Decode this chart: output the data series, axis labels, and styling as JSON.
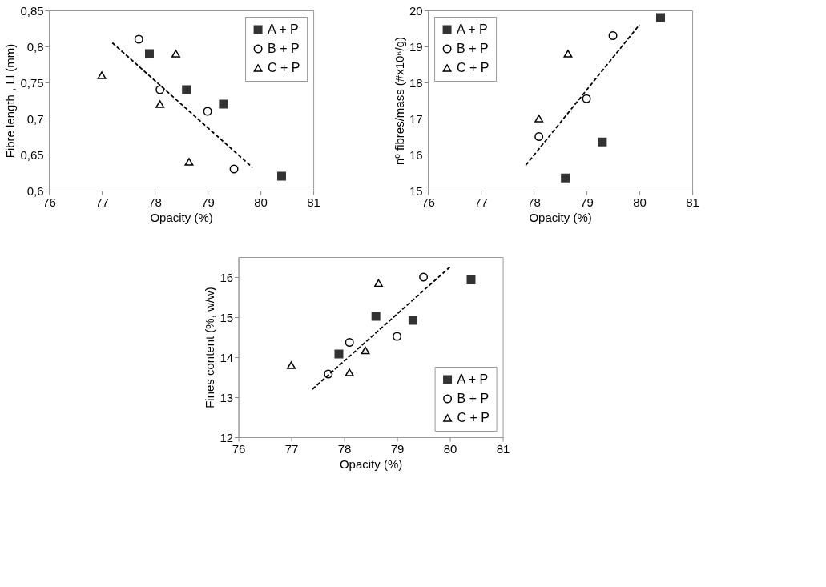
{
  "chart_data": [
    {
      "type": "scatter",
      "xlabel": "Opacity (%)",
      "ylabel": "Fibre length , Ll (mm)",
      "legend": "top right",
      "grid": false,
      "xlim": [
        76,
        81
      ],
      "xticks": [
        76,
        77,
        78,
        79,
        80,
        81
      ],
      "ylim": [
        0.6,
        0.85
      ],
      "yticks": [
        {
          "value": 0.6,
          "label": "0,6"
        },
        {
          "value": 0.65,
          "label": "0,65"
        },
        {
          "value": 0.7,
          "label": "0,7"
        },
        {
          "value": 0.75,
          "label": "0,75"
        },
        {
          "value": 0.8,
          "label": "0,8"
        },
        {
          "value": 0.85,
          "label": "0,85"
        }
      ],
      "series": [
        {
          "name": "A + P",
          "color": "#333333",
          "marker": "square",
          "x": [
            77.9,
            78.6,
            79.3,
            80.4
          ],
          "values": [
            0.79,
            0.74,
            0.72,
            0.62
          ]
        },
        {
          "name": "B + P",
          "color": "#000000",
          "marker": "circle",
          "x": [
            77.7,
            78.1,
            79.0,
            79.5
          ],
          "values": [
            0.81,
            0.74,
            0.71,
            0.63
          ]
        },
        {
          "name": "C + P",
          "color": "#000000",
          "marker": "triangle",
          "x": [
            77.0,
            78.1,
            78.4,
            78.65
          ],
          "values": [
            0.76,
            0.72,
            0.79,
            0.64
          ]
        },
        {
          "type": "line",
          "color": "#000000",
          "line_style": "dashed",
          "x": [
            77.2,
            79.85
          ],
          "values": [
            0.805,
            0.632
          ]
        }
      ]
    },
    {
      "type": "scatter",
      "xlabel": "Opacity (%)",
      "ylabel": "nº fibres/mass (#x10⁶/g)",
      "legend": "top left",
      "grid": false,
      "xlim": [
        76,
        81
      ],
      "xticks": [
        76,
        77,
        78,
        79,
        80,
        81
      ],
      "ylim": [
        15,
        20
      ],
      "yticks": [
        15,
        16,
        17,
        18,
        19,
        20
      ],
      "series": [
        {
          "name": "A + P",
          "color": "#333333",
          "marker": "square",
          "x": [
            78.6,
            79.3,
            80.4
          ],
          "values": [
            15.35,
            16.35,
            19.8
          ]
        },
        {
          "name": "B + P",
          "color": "#000000",
          "marker": "circle",
          "x": [
            78.1,
            79.0,
            79.5
          ],
          "values": [
            16.5,
            17.55,
            19.3
          ]
        },
        {
          "name": "C + P",
          "color": "#000000",
          "marker": "triangle",
          "x": [
            78.1,
            78.65
          ],
          "values": [
            17.0,
            18.8
          ]
        },
        {
          "type": "line",
          "color": "#000000",
          "line_style": "dashed",
          "x": [
            77.85,
            80.0
          ],
          "values": [
            15.7,
            19.6
          ]
        }
      ]
    },
    {
      "type": "scatter",
      "xlabel": "Opacity (%)",
      "ylabel": "Fines content (%, w/w)",
      "legend": "bottom right",
      "grid": false,
      "xlim": [
        76,
        81
      ],
      "xticks": [
        76,
        77,
        78,
        79,
        80,
        81
      ],
      "ylim": [
        12,
        16.5
      ],
      "yticks": [
        12,
        13,
        14,
        15,
        16
      ],
      "series": [
        {
          "name": "A + P",
          "color": "#333333",
          "marker": "square",
          "x": [
            77.9,
            78.6,
            79.3,
            80.4
          ],
          "values": [
            14.08,
            15.02,
            14.92,
            15.93
          ]
        },
        {
          "name": "B + P",
          "color": "#000000",
          "marker": "circle",
          "x": [
            77.7,
            78.1,
            79.0,
            79.5
          ],
          "values": [
            13.58,
            14.37,
            14.52,
            16.0
          ]
        },
        {
          "name": "C + P",
          "color": "#000000",
          "marker": "triangle",
          "x": [
            77.0,
            78.1,
            78.4,
            78.65
          ],
          "values": [
            13.8,
            13.62,
            14.17,
            15.85
          ]
        },
        {
          "type": "line",
          "color": "#000000",
          "line_style": "dashed",
          "x": [
            77.4,
            80.0
          ],
          "values": [
            13.2,
            16.25
          ]
        }
      ]
    }
  ]
}
